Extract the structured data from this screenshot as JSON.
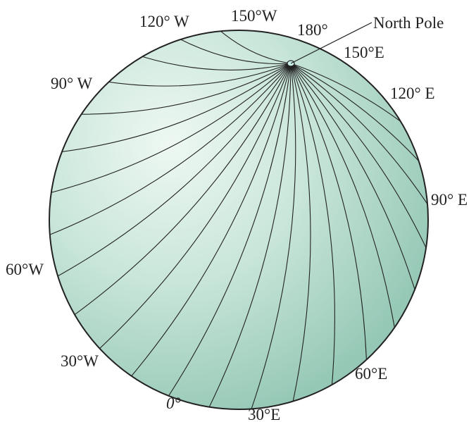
{
  "labels": {
    "north_pole": "North Pole",
    "lon_180": "180°",
    "lon_150w": "150°W",
    "lon_120w": "120° W",
    "lon_90w": "90° W",
    "lon_60w": "60°W",
    "lon_30w": "30°W",
    "lon_0": "0°",
    "lon_30e": "30°E",
    "lon_60e": "60°E",
    "lon_90e": "90° E",
    "lon_120e": "120° E",
    "lon_150e": "150°E"
  }
}
